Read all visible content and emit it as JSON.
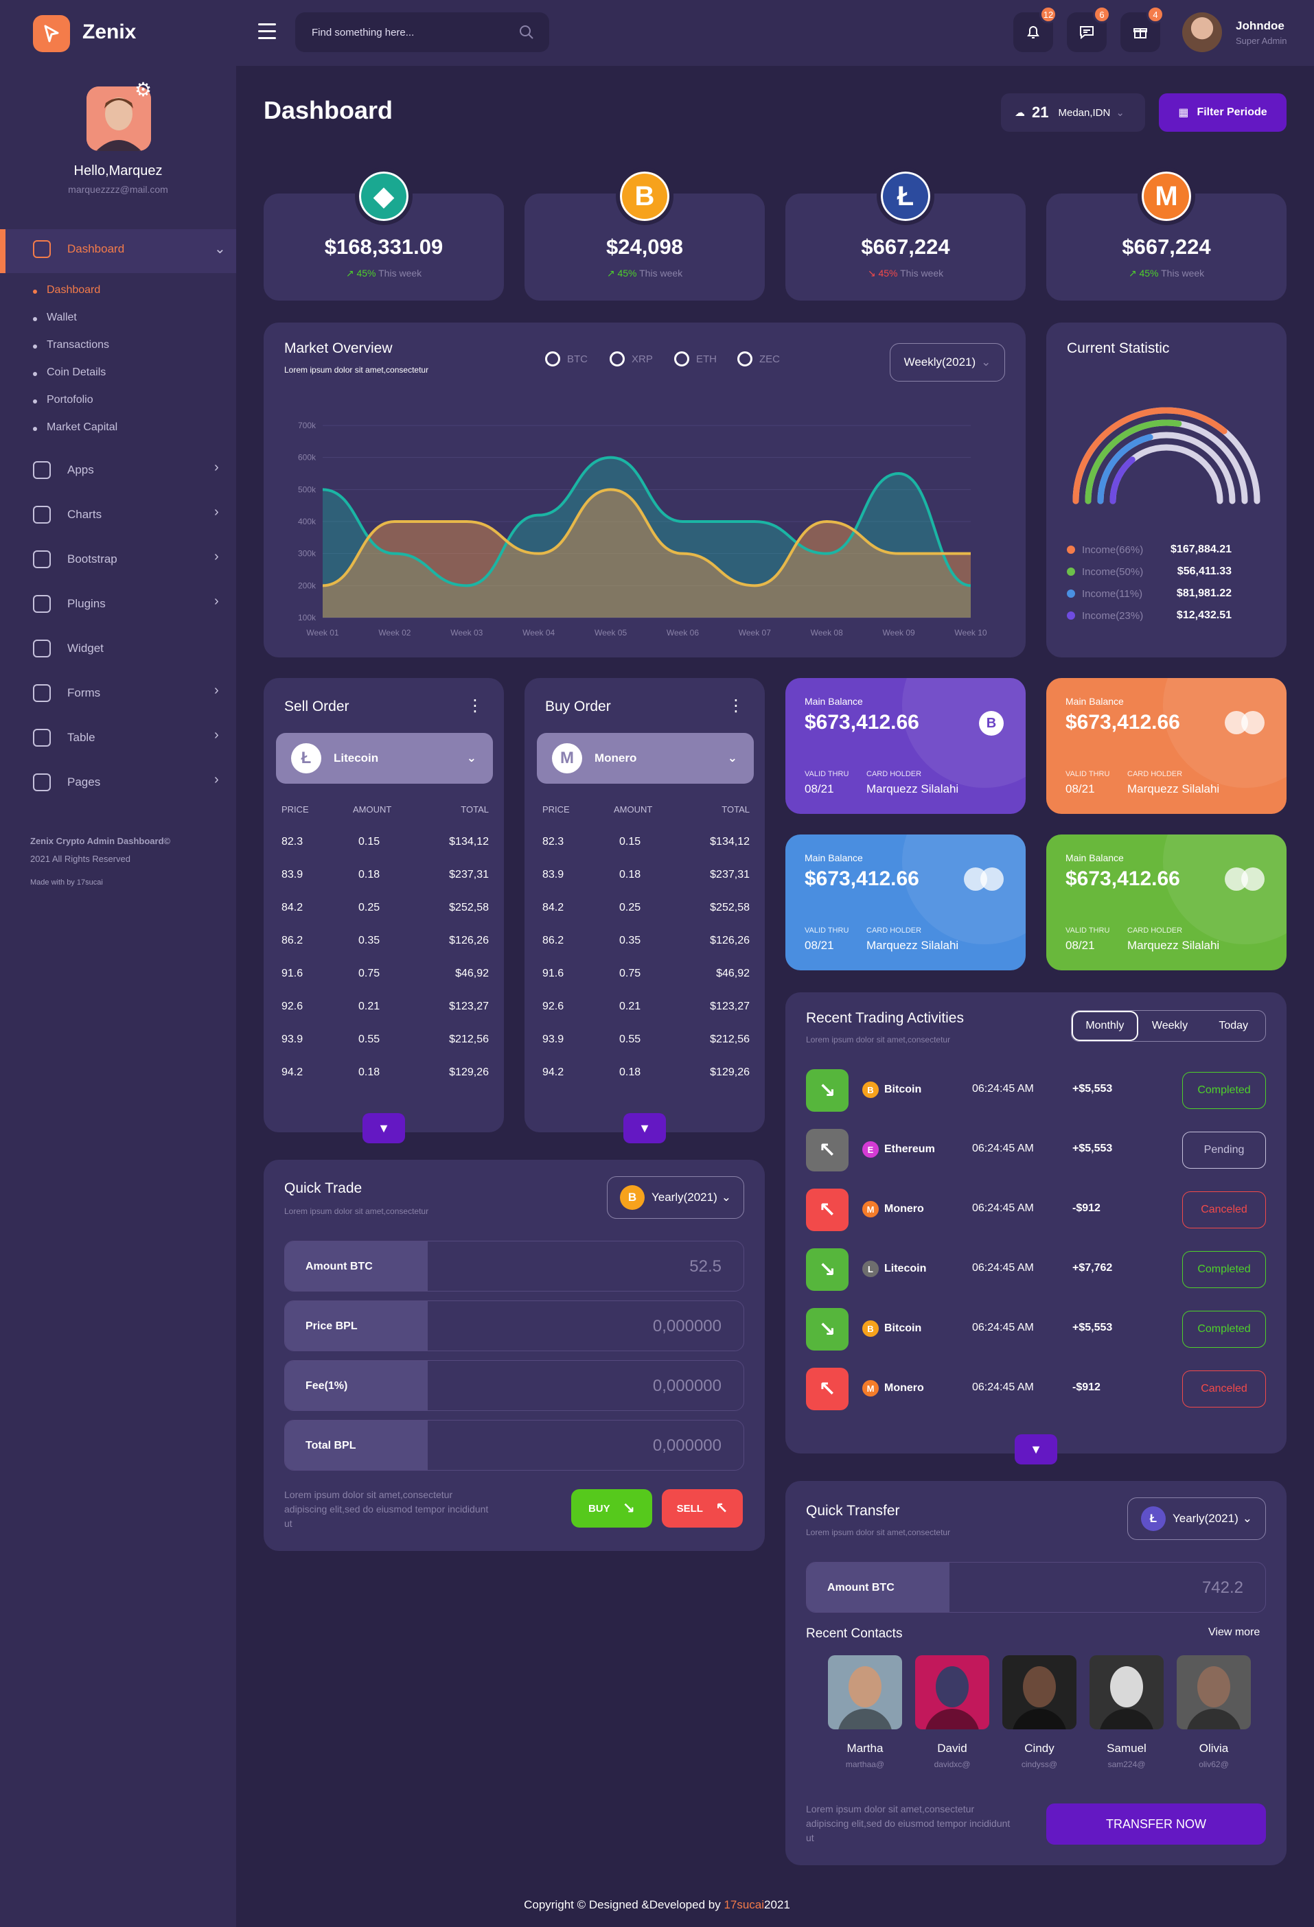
{
  "brand": {
    "name": "Zenix"
  },
  "search": {
    "placeholder": "Find something here..."
  },
  "topbar": {
    "notif_count": "12",
    "msg_count": "6",
    "gift_count": "4",
    "user_name": "Johndoe",
    "user_role": "Super Admin"
  },
  "profile": {
    "greeting": "Hello,Marquez",
    "email": "marquezzzz@mail.com"
  },
  "sidebar": {
    "active": "Dashboard",
    "submenu": [
      "Dashboard",
      "Wallet",
      "Transactions",
      "Coin Details",
      "Portofolio",
      "Market Capital"
    ],
    "items": [
      "Apps",
      "Charts",
      "Bootstrap",
      "Plugins",
      "Widget",
      "Forms",
      "Table",
      "Pages"
    ],
    "footer1": "Zenix Crypto Admin Dashboard©",
    "footer2": "2021 All Rights Reserved",
    "footer3": "Made with by 17sucai"
  },
  "page": {
    "title": "Dashboard",
    "weather_temp": "21",
    "weather_loc": "Medan,IDN",
    "filter_label": "Filter Periode"
  },
  "stats": [
    {
      "price": "$168,331.09",
      "pct": "45%",
      "label": "This week",
      "trend": "up",
      "color": "#1aa891",
      "glyph": "◆"
    },
    {
      "price": "$24,098",
      "pct": "45%",
      "label": "This week",
      "trend": "up",
      "color": "#f7a21c",
      "glyph": "B"
    },
    {
      "price": "$667,224",
      "pct": "45%",
      "label": "This week",
      "trend": "down",
      "color": "#2c4b9e",
      "glyph": "Ł"
    },
    {
      "price": "$667,224",
      "pct": "45%",
      "label": "This week",
      "trend": "up",
      "color": "#f47c2a",
      "glyph": "M"
    }
  ],
  "market": {
    "title": "Market Overview",
    "subtitle": "Lorem ipsum dolor sit amet,consectetur",
    "legend": [
      "BTC",
      "XRP",
      "ETH",
      "ZEC"
    ],
    "period": "Weekly(2021)"
  },
  "chart_data": {
    "type": "area",
    "categories": [
      "Week 01",
      "Week 02",
      "Week 03",
      "Week 04",
      "Week 05",
      "Week 06",
      "Week 07",
      "Week 08",
      "Week 09",
      "Week 10"
    ],
    "series": [
      {
        "values": [
          500,
          300,
          200,
          420,
          600,
          400,
          400,
          300,
          550,
          200
        ],
        "color": "#1bb5a4"
      },
      {
        "values": [
          200,
          400,
          400,
          300,
          500,
          300,
          200,
          400,
          300,
          300
        ],
        "color": "#e7b84a"
      }
    ],
    "yticks": [
      "700k",
      "600k",
      "500k",
      "400k",
      "300k",
      "200k",
      "100k"
    ],
    "ylim": [
      100,
      700
    ]
  },
  "current_stat": {
    "title": "Current Statistic",
    "rows": [
      {
        "label": "Income(66%)",
        "value": "$167,884.21",
        "color": "#f47c4a"
      },
      {
        "label": "Income(50%)",
        "value": "$56,411.33",
        "color": "#6cc04a"
      },
      {
        "label": "Income(11%)",
        "value": "$81,981.22",
        "color": "#4a90e2"
      },
      {
        "label": "Income(23%)",
        "value": "$12,432.51",
        "color": "#6f4ce0"
      }
    ]
  },
  "sell": {
    "title": "Sell Order",
    "coin": "Litecoin"
  },
  "buy": {
    "title": "Buy Order",
    "coin": "Monero"
  },
  "orderbook": {
    "headers": [
      "PRICE",
      "AMOUNT",
      "TOTAL"
    ],
    "rows": [
      [
        "82.3",
        "0.15",
        "$134,12"
      ],
      [
        "83.9",
        "0.18",
        "$237,31"
      ],
      [
        "84.2",
        "0.25",
        "$252,58"
      ],
      [
        "86.2",
        "0.35",
        "$126,26"
      ],
      [
        "91.6",
        "0.75",
        "$46,92"
      ],
      [
        "92.6",
        "0.21",
        "$123,27"
      ],
      [
        "93.9",
        "0.55",
        "$212,56"
      ],
      [
        "94.2",
        "0.18",
        "$129,26"
      ]
    ]
  },
  "cards": [
    {
      "label": "Main Balance",
      "amount": "$673,412.66",
      "valid_label": "VALID THRU",
      "valid": "08/21",
      "holder_label": "CARD HOLDER",
      "holder": "Marquezz Silalahi",
      "color": "#6a42c5"
    },
    {
      "label": "Main Balance",
      "amount": "$673,412.66",
      "valid_label": "VALID THRU",
      "valid": "08/21",
      "holder_label": "CARD HOLDER",
      "holder": "Marquezz Silalahi",
      "color": "#f0834f"
    },
    {
      "label": "Main Balance",
      "amount": "$673,412.66",
      "valid_label": "VALID THRU",
      "valid": "08/21",
      "holder_label": "CARD HOLDER",
      "holder": "Marquezz Silalahi",
      "color": "#4a8ee0"
    },
    {
      "label": "Main Balance",
      "amount": "$673,412.66",
      "valid_label": "VALID THRU",
      "valid": "08/21",
      "holder_label": "CARD HOLDER",
      "holder": "Marquezz Silalahi",
      "color": "#69b83c"
    }
  ],
  "trading": {
    "title": "Recent Trading Activities",
    "subtitle": "Lorem ipsum dolor sit amet,consectetur",
    "tabs": [
      "Monthly",
      "Weekly",
      "Today"
    ],
    "rows": [
      {
        "coin": "Bitcoin",
        "time": "06:24:45 AM",
        "amount": "+$5,553",
        "status": "Completed",
        "dir": "down",
        "coin_color": "#f7a21c"
      },
      {
        "coin": "Ethereum",
        "time": "06:24:45 AM",
        "amount": "+$5,553",
        "status": "Pending",
        "dir": "up",
        "coin_color": "#d43bd4"
      },
      {
        "coin": "Monero",
        "time": "06:24:45 AM",
        "amount": "-$912",
        "status": "Canceled",
        "dir": "up",
        "coin_color": "#f47c2a"
      },
      {
        "coin": "Litecoin",
        "time": "06:24:45 AM",
        "amount": "+$7,762",
        "status": "Completed",
        "dir": "down",
        "coin_color": "#6e6e6e"
      },
      {
        "coin": "Bitcoin",
        "time": "06:24:45 AM",
        "amount": "+$5,553",
        "status": "Completed",
        "dir": "down",
        "coin_color": "#f7a21c"
      },
      {
        "coin": "Monero",
        "time": "06:24:45 AM",
        "amount": "-$912",
        "status": "Canceled",
        "dir": "up",
        "coin_color": "#f47c2a"
      }
    ]
  },
  "quick_trade": {
    "title": "Quick Trade",
    "subtitle": "Lorem ipsum dolor sit amet,consectetur",
    "period": "Yearly(2021)",
    "fields": [
      {
        "label": "Amount BTC",
        "placeholder": "52.5"
      },
      {
        "label": "Price BPL",
        "placeholder": "0,000000"
      },
      {
        "label": "Fee(1%)",
        "placeholder": "0,000000"
      },
      {
        "label": "Total BPL",
        "placeholder": "0,000000"
      }
    ],
    "note": "Lorem ipsum dolor sit amet,consectetur adipiscing elit,sed do eiusmod tempor incididunt ut",
    "buy": "BUY",
    "sell": "SELL"
  },
  "quick_transfer": {
    "title": "Quick Transfer",
    "subtitle": "Lorem ipsum dolor sit amet,consectetur",
    "period": "Yearly(2021)",
    "field_label": "Amount BTC",
    "field_placeholder": "742.2",
    "contacts_title": "Recent Contacts",
    "view_more": "View more",
    "contacts": [
      {
        "name": "Martha",
        "handle": "marthaa@"
      },
      {
        "name": "David",
        "handle": "davidxc@"
      },
      {
        "name": "Cindy",
        "handle": "cindyss@"
      },
      {
        "name": "Samuel",
        "handle": "sam224@"
      },
      {
        "name": "Olivia",
        "handle": "oliv62@"
      }
    ],
    "note": "Lorem ipsum dolor sit amet,consectetur adipiscing elit,sed do eiusmod tempor incididunt ut",
    "button": "TRANSFER NOW"
  },
  "footer": {
    "text": "Copyright © Designed &Developed by",
    "author": "17sucai",
    "year": "2021"
  }
}
